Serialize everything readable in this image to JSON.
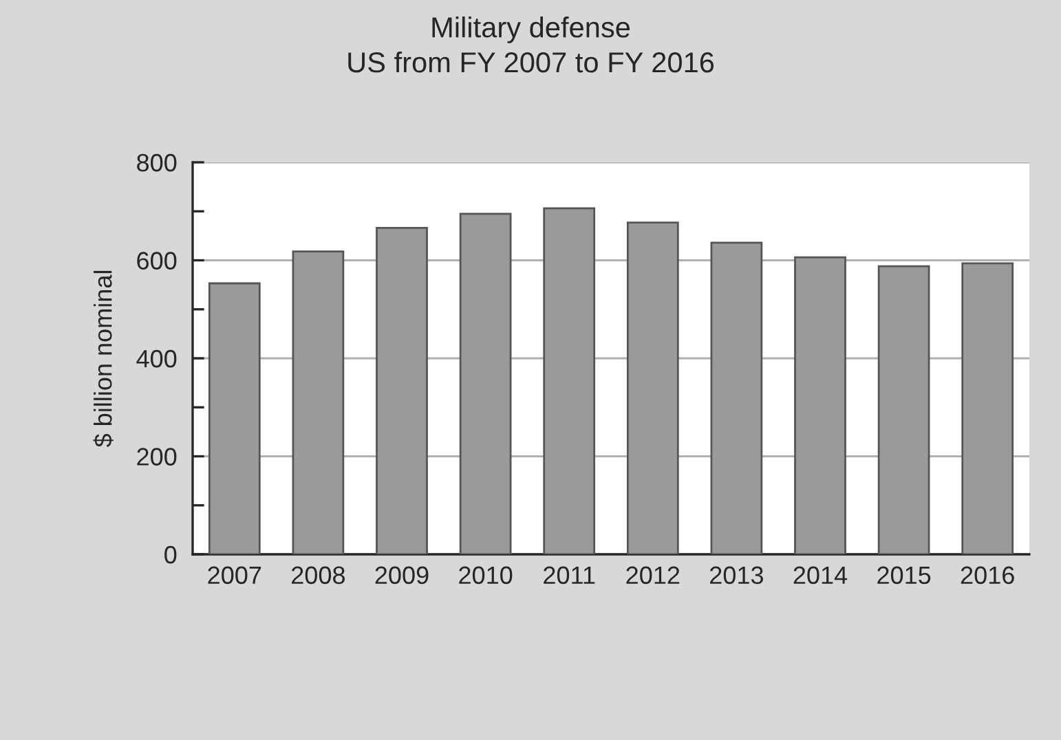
{
  "chart_data": {
    "type": "bar",
    "title": "Military defense\nUS from FY 2007 to FY 2016",
    "ylabel": "$ billion nominal",
    "categories": [
      "2007",
      "2008",
      "2009",
      "2010",
      "2011",
      "2012",
      "2013",
      "2014",
      "2015",
      "2016"
    ],
    "values": [
      553,
      618,
      666,
      695,
      706,
      677,
      636,
      606,
      588,
      594
    ],
    "color": "#9a9a9a",
    "ylim": [
      0,
      800
    ],
    "yticks": [
      0,
      {
        "value": 100,
        "label": null
      },
      200,
      {
        "value": 300,
        "label": null
      },
      400,
      {
        "value": 500,
        "label": null
      },
      600,
      {
        "value": 700,
        "label": null
      },
      800
    ],
    "grid": "y",
    "legend": false
  }
}
